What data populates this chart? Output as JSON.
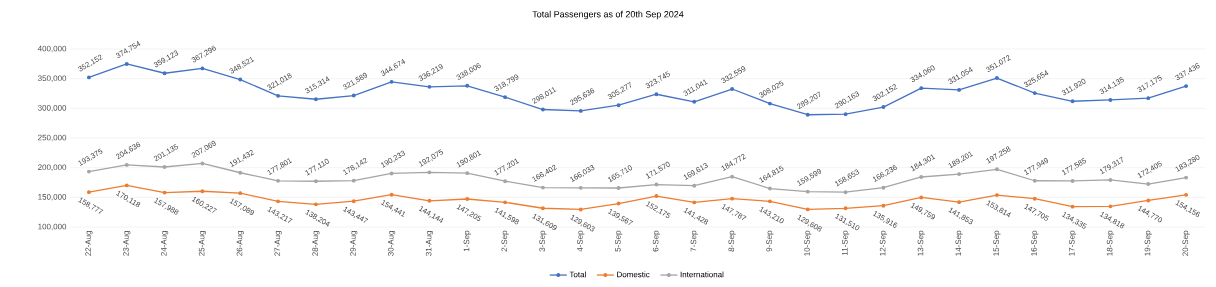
{
  "chart_data": {
    "type": "line",
    "title": "Total Passengers as of 20th Sep 2024",
    "categories": [
      "22-Aug",
      "23-Aug",
      "24-Aug",
      "25-Aug",
      "26-Aug",
      "27-Aug",
      "28-Aug",
      "29-Aug",
      "30-Aug",
      "31-Aug",
      "1-Sep",
      "2-Sep",
      "3-Sep",
      "4-Sep",
      "5-Sep",
      "6-Sep",
      "7-Sep",
      "8-Sep",
      "9-Sep",
      "10-Sep",
      "11-Sep",
      "12-Sep",
      "13-Sep",
      "14-Sep",
      "15-Sep",
      "16-Sep",
      "17-Sep",
      "18-Sep",
      "19-Sep",
      "20-Sep"
    ],
    "series": [
      {
        "name": "Total",
        "color": "#4472c4",
        "values": [
          352152,
          374754,
          359123,
          367296,
          348521,
          321018,
          315314,
          321589,
          344674,
          336219,
          338006,
          318799,
          298011,
          295636,
          305277,
          323745,
          311041,
          332559,
          308025,
          289207,
          290163,
          302152,
          334060,
          331054,
          351072,
          325654,
          311920,
          314135,
          317175,
          337436
        ],
        "value_labels": [
          "352,152",
          "374,754",
          "359,123",
          "367,296",
          "348,521",
          "321,018",
          "315,314",
          "321,589",
          "344,674",
          "336,219",
          "338,006",
          "318,799",
          "298,011",
          "295,636",
          "305,277",
          "323,745",
          "311,041",
          "332,559",
          "308,025",
          "289,207",
          "290,163",
          "302,152",
          "334,060",
          "331,054",
          "351,072",
          "325,654",
          "311,920",
          "314,135",
          "317,175",
          "337,436"
        ]
      },
      {
        "name": "Domestic",
        "color": "#ed7d31",
        "values": [
          158777,
          170118,
          157988,
          160227,
          157089,
          143217,
          138204,
          143447,
          154441,
          144144,
          147205,
          141598,
          131609,
          129603,
          139567,
          152175,
          141428,
          147787,
          143210,
          129608,
          131510,
          135916,
          149759,
          141853,
          153814,
          147705,
          134335,
          134818,
          144770,
          154156
        ],
        "value_labels": [
          "158,777",
          "170,118",
          "157,988",
          "160,227",
          "157,089",
          "143,217",
          "138,204",
          "143,447",
          "154,441",
          "144,144",
          "147,205",
          "141,598",
          "131,609",
          "129,603",
          "139,567",
          "152,175",
          "141,428",
          "147,787",
          "143,210",
          "129,608",
          "131,510",
          "135,916",
          "149,759",
          "141,853",
          "153,814",
          "147,705",
          "134,335",
          "134,818",
          "144,770",
          "154,156"
        ]
      },
      {
        "name": "International",
        "color": "#a5a5a5",
        "values": [
          193375,
          204636,
          201135,
          207069,
          191432,
          177801,
          177110,
          178142,
          190233,
          192075,
          190801,
          177201,
          166402,
          166033,
          165710,
          171570,
          169613,
          184772,
          164815,
          159599,
          158653,
          166236,
          184301,
          189201,
          197258,
          177949,
          177585,
          179317,
          172405,
          183280
        ],
        "value_labels": [
          "193,375",
          "204,636",
          "201,135",
          "207,069",
          "191,432",
          "177,801",
          "177,110",
          "178,142",
          "190,233",
          "192,075",
          "190,801",
          "177,201",
          "166,402",
          "166,033",
          "165,710",
          "171,570",
          "169,613",
          "184,772",
          "164,815",
          "159,599",
          "158,653",
          "166,236",
          "184,301",
          "189,201",
          "197,258",
          "177,949",
          "177,585",
          "179,317",
          "172,405",
          "183,280"
        ]
      }
    ],
    "ylim": [
      100000,
      400000
    ],
    "yticks": [
      {
        "value": 100000,
        "label": "100,000"
      },
      {
        "value": 150000,
        "label": "150,000"
      },
      {
        "value": 200000,
        "label": "200,000"
      },
      {
        "value": 250000,
        "label": "250,000"
      },
      {
        "value": 300000,
        "label": "300,000"
      },
      {
        "value": 350000,
        "label": "350,000"
      },
      {
        "value": 400000,
        "label": "400,000"
      }
    ],
    "grid": "y",
    "legend": "bottom",
    "marker": "circle",
    "line_style": "solid"
  }
}
